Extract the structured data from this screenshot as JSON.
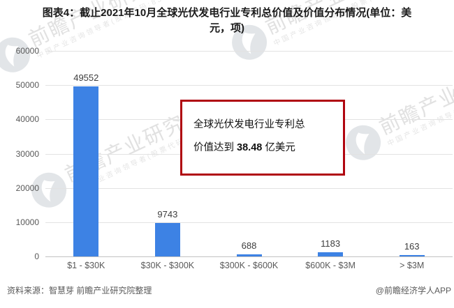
{
  "title": {
    "line1": "图表4：截止2021年10月全球光伏发电行业专利总价值及价值分布情况(单位：美",
    "line2": "元，项)"
  },
  "chart_data": {
    "type": "bar",
    "categories": [
      "$1 - $30K",
      "$30K - $300K",
      "$300K - $600K",
      "$600K - $3M",
      "> $3M"
    ],
    "values": [
      49552,
      9743,
      688,
      1183,
      163
    ],
    "title": "截止2021年10月全球光伏发电行业专利总价值及价值分布情况",
    "xlabel": "",
    "ylabel": "",
    "ylim": [
      0,
      60000
    ],
    "ytick_step": 10000,
    "grid": true,
    "legend": "none",
    "bar_color": "#3D82E4"
  },
  "annotation": {
    "line1": "全球光伏发电行业专利总",
    "line2_prefix": "价值达到 ",
    "line2_value": "38.48",
    "line2_suffix": " 亿美元",
    "border_color": "#B00610"
  },
  "watermark": {
    "logo": "qianzhan-logo-icon",
    "brand": "前瞻产业研究院",
    "tagline": "中国产业咨询领导者(股票代码:839599)"
  },
  "footer": {
    "source": "资料来源：智慧芽 前瞻产业研究院整理",
    "credit": "@前瞻经济学人APP"
  }
}
